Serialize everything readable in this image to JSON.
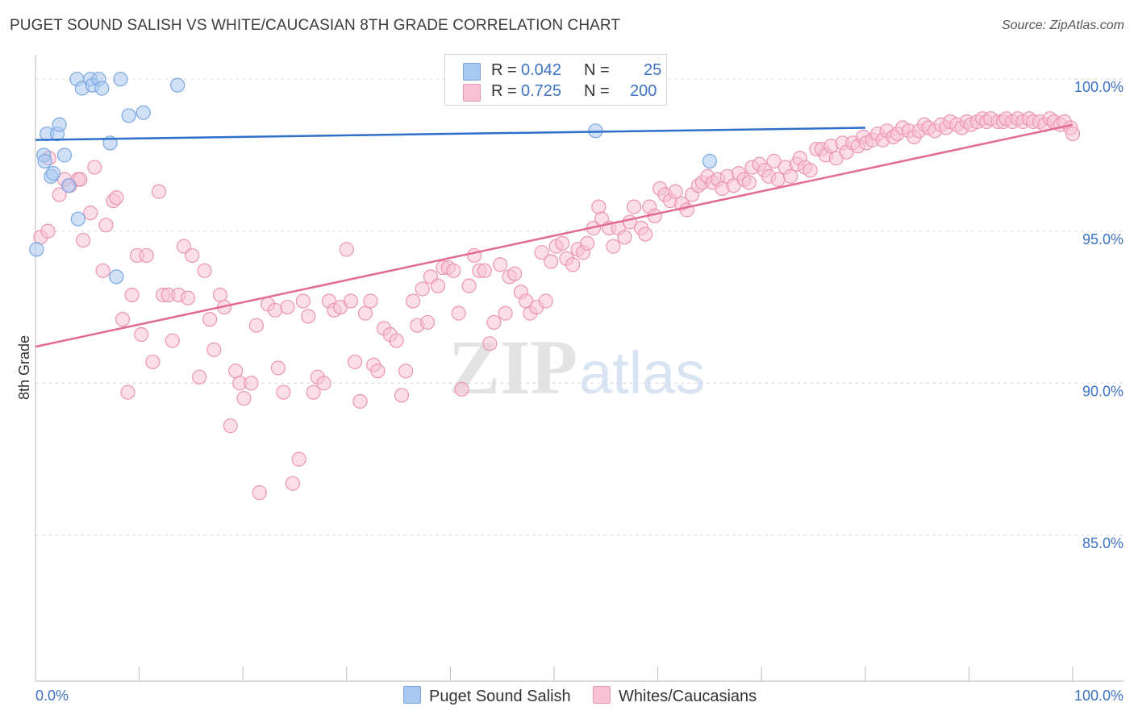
{
  "title": "PUGET SOUND SALISH VS WHITE/CAUCASIAN 8TH GRADE CORRELATION CHART",
  "source": "Source: ZipAtlas.com",
  "watermark": {
    "zip": "ZIP",
    "atlas": "atlas"
  },
  "legend": {
    "r_label": "R =",
    "n_label": "N =",
    "series": [
      {
        "name": "Puget Sound Salish",
        "r": "0.042",
        "n": "25"
      },
      {
        "name": "Whites/Caucasians",
        "r": "0.725",
        "n": "200"
      }
    ]
  },
  "colors": {
    "blue_fill": "#a9c8f0",
    "blue_stroke": "#7aa7e0",
    "blue_line": "#2f6fcc",
    "pink_fill": "#f7c3d4",
    "pink_stroke": "#ec95b2",
    "pink_line": "#e26a96",
    "axis_text": "#3c72c4",
    "grid": "#dddddd"
  },
  "chart_data": {
    "type": "scatter",
    "title": "PUGET SOUND SALISH VS WHITE/CAUCASIAN 8TH GRADE CORRELATION CHART",
    "xlabel": "",
    "ylabel": "8th Grade",
    "xlim": [
      0,
      100
    ],
    "ylim": [
      80.2,
      100.8
    ],
    "x_tick_labels": [
      "0.0%",
      "100.0%"
    ],
    "y_ticks": [
      {
        "value": 100,
        "label": "100.0%"
      },
      {
        "value": 95,
        "label": "95.0%"
      },
      {
        "value": 90,
        "label": "90.0%"
      },
      {
        "value": 85,
        "label": "85.0%"
      }
    ],
    "legend_position": "bottom",
    "series": [
      {
        "name": "Puget Sound Salish",
        "r": 0.042,
        "n": 25,
        "trend": {
          "x0": 0,
          "y0": 98.0,
          "x1": 80,
          "y1": 98.4
        },
        "points": [
          [
            0.1,
            94.4
          ],
          [
            0.8,
            97.5
          ],
          [
            0.9,
            97.3
          ],
          [
            1.1,
            98.2
          ],
          [
            1.5,
            96.8
          ],
          [
            1.7,
            96.9
          ],
          [
            2.1,
            98.2
          ],
          [
            2.3,
            98.5
          ],
          [
            2.8,
            97.5
          ],
          [
            3.2,
            96.5
          ],
          [
            4.1,
            95.4
          ],
          [
            4.0,
            100.0
          ],
          [
            4.5,
            99.7
          ],
          [
            5.3,
            100.0
          ],
          [
            5.5,
            99.8
          ],
          [
            6.1,
            100.0
          ],
          [
            6.4,
            99.7
          ],
          [
            7.2,
            97.9
          ],
          [
            7.8,
            93.5
          ],
          [
            8.2,
            100.0
          ],
          [
            9.0,
            98.8
          ],
          [
            10.4,
            98.9
          ],
          [
            13.7,
            99.8
          ],
          [
            54.0,
            98.3
          ],
          [
            65.0,
            97.3
          ]
        ]
      },
      {
        "name": "Whites/Caucasians",
        "r": 0.725,
        "n": 200,
        "trend": {
          "x0": 0,
          "y0": 91.2,
          "x1": 100,
          "y1": 98.5
        },
        "points": [
          [
            0.5,
            94.8
          ],
          [
            1.2,
            95.0
          ],
          [
            1.3,
            97.4
          ],
          [
            2.3,
            96.2
          ],
          [
            2.8,
            96.7
          ],
          [
            3.3,
            96.5
          ],
          [
            4.1,
            96.7
          ],
          [
            4.3,
            96.7
          ],
          [
            4.6,
            94.7
          ],
          [
            5.3,
            95.6
          ],
          [
            5.7,
            97.1
          ],
          [
            6.5,
            93.7
          ],
          [
            6.8,
            95.2
          ],
          [
            7.5,
            96.0
          ],
          [
            7.8,
            96.1
          ],
          [
            8.4,
            92.1
          ],
          [
            8.9,
            89.7
          ],
          [
            9.3,
            92.9
          ],
          [
            9.8,
            94.2
          ],
          [
            10.2,
            91.6
          ],
          [
            10.7,
            94.2
          ],
          [
            11.3,
            90.7
          ],
          [
            11.9,
            96.3
          ],
          [
            12.3,
            92.9
          ],
          [
            12.8,
            92.9
          ],
          [
            13.2,
            91.4
          ],
          [
            13.8,
            92.9
          ],
          [
            14.3,
            94.5
          ],
          [
            14.7,
            92.8
          ],
          [
            15.1,
            94.2
          ],
          [
            15.8,
            90.2
          ],
          [
            16.3,
            93.7
          ],
          [
            16.8,
            92.1
          ],
          [
            17.2,
            91.1
          ],
          [
            17.8,
            92.9
          ],
          [
            18.2,
            92.5
          ],
          [
            18.8,
            88.6
          ],
          [
            19.3,
            90.4
          ],
          [
            19.7,
            90.0
          ],
          [
            20.1,
            89.5
          ],
          [
            20.8,
            90.0
          ],
          [
            21.3,
            91.9
          ],
          [
            21.6,
            86.4
          ],
          [
            22.4,
            92.6
          ],
          [
            23.1,
            92.4
          ],
          [
            23.4,
            90.5
          ],
          [
            23.9,
            89.7
          ],
          [
            24.3,
            92.5
          ],
          [
            24.8,
            86.7
          ],
          [
            25.4,
            87.5
          ],
          [
            25.8,
            92.7
          ],
          [
            26.3,
            92.2
          ],
          [
            26.8,
            89.7
          ],
          [
            27.2,
            90.2
          ],
          [
            27.8,
            90.0
          ],
          [
            28.3,
            92.7
          ],
          [
            28.8,
            92.4
          ],
          [
            29.4,
            92.5
          ],
          [
            30.0,
            94.4
          ],
          [
            30.4,
            92.7
          ],
          [
            30.8,
            90.7
          ],
          [
            31.3,
            89.4
          ],
          [
            31.8,
            92.3
          ],
          [
            32.3,
            92.7
          ],
          [
            32.6,
            90.6
          ],
          [
            33.0,
            90.4
          ],
          [
            33.6,
            91.8
          ],
          [
            34.2,
            91.6
          ],
          [
            34.8,
            91.4
          ],
          [
            35.3,
            89.6
          ],
          [
            35.7,
            90.4
          ],
          [
            36.4,
            92.7
          ],
          [
            36.8,
            91.9
          ],
          [
            37.3,
            93.1
          ],
          [
            37.8,
            92.0
          ],
          [
            38.1,
            93.5
          ],
          [
            38.8,
            93.2
          ],
          [
            39.3,
            93.8
          ],
          [
            39.8,
            93.8
          ],
          [
            40.3,
            93.7
          ],
          [
            40.8,
            92.3
          ],
          [
            41.1,
            89.8
          ],
          [
            41.8,
            93.2
          ],
          [
            42.3,
            94.2
          ],
          [
            42.8,
            93.7
          ],
          [
            43.3,
            93.7
          ],
          [
            43.8,
            91.3
          ],
          [
            44.2,
            92.0
          ],
          [
            44.8,
            93.9
          ],
          [
            45.3,
            92.3
          ],
          [
            45.7,
            93.5
          ],
          [
            46.2,
            93.6
          ],
          [
            46.8,
            93.0
          ],
          [
            47.3,
            92.7
          ],
          [
            47.7,
            92.3
          ],
          [
            48.3,
            92.5
          ],
          [
            48.8,
            94.3
          ],
          [
            49.2,
            92.7
          ],
          [
            49.7,
            94.0
          ],
          [
            50.2,
            94.5
          ],
          [
            50.8,
            94.6
          ],
          [
            51.2,
            94.1
          ],
          [
            51.8,
            93.9
          ],
          [
            52.3,
            94.4
          ],
          [
            52.8,
            94.3
          ],
          [
            53.2,
            94.6
          ],
          [
            53.8,
            95.1
          ],
          [
            54.3,
            95.8
          ],
          [
            54.6,
            95.4
          ],
          [
            55.3,
            95.1
          ],
          [
            55.7,
            94.5
          ],
          [
            56.2,
            95.1
          ],
          [
            56.8,
            94.8
          ],
          [
            57.3,
            95.3
          ],
          [
            57.7,
            95.8
          ],
          [
            58.4,
            95.1
          ],
          [
            58.8,
            94.9
          ],
          [
            59.2,
            95.8
          ],
          [
            59.7,
            95.5
          ],
          [
            60.2,
            96.4
          ],
          [
            60.7,
            96.2
          ],
          [
            61.2,
            96.0
          ],
          [
            61.7,
            96.3
          ],
          [
            62.3,
            95.9
          ],
          [
            62.8,
            95.7
          ],
          [
            63.3,
            96.2
          ],
          [
            63.9,
            96.5
          ],
          [
            64.3,
            96.6
          ],
          [
            64.8,
            96.8
          ],
          [
            65.3,
            96.6
          ],
          [
            65.8,
            96.7
          ],
          [
            66.2,
            96.4
          ],
          [
            66.7,
            96.8
          ],
          [
            67.3,
            96.5
          ],
          [
            67.8,
            96.9
          ],
          [
            68.3,
            96.7
          ],
          [
            68.8,
            96.6
          ],
          [
            69.1,
            97.1
          ],
          [
            69.8,
            97.2
          ],
          [
            70.3,
            97.0
          ],
          [
            70.7,
            96.8
          ],
          [
            71.2,
            97.3
          ],
          [
            71.6,
            96.7
          ],
          [
            72.3,
            97.1
          ],
          [
            72.8,
            96.8
          ],
          [
            73.4,
            97.2
          ],
          [
            73.7,
            97.4
          ],
          [
            74.2,
            97.1
          ],
          [
            74.7,
            97.0
          ],
          [
            75.3,
            97.7
          ],
          [
            75.8,
            97.7
          ],
          [
            76.2,
            97.5
          ],
          [
            76.7,
            97.8
          ],
          [
            77.2,
            97.4
          ],
          [
            77.8,
            97.9
          ],
          [
            78.2,
            97.6
          ],
          [
            78.8,
            97.9
          ],
          [
            79.3,
            97.8
          ],
          [
            79.8,
            98.1
          ],
          [
            80.1,
            97.9
          ],
          [
            80.7,
            98.0
          ],
          [
            81.2,
            98.2
          ],
          [
            81.7,
            98.0
          ],
          [
            82.1,
            98.3
          ],
          [
            82.7,
            98.1
          ],
          [
            83.1,
            98.2
          ],
          [
            83.6,
            98.4
          ],
          [
            84.2,
            98.3
          ],
          [
            84.7,
            98.1
          ],
          [
            85.2,
            98.3
          ],
          [
            85.7,
            98.5
          ],
          [
            86.1,
            98.4
          ],
          [
            86.7,
            98.3
          ],
          [
            87.3,
            98.5
          ],
          [
            87.8,
            98.4
          ],
          [
            88.2,
            98.6
          ],
          [
            88.8,
            98.5
          ],
          [
            89.3,
            98.4
          ],
          [
            89.8,
            98.6
          ],
          [
            90.2,
            98.5
          ],
          [
            90.8,
            98.6
          ],
          [
            91.3,
            98.7
          ],
          [
            91.7,
            98.6
          ],
          [
            92.1,
            98.7
          ],
          [
            92.8,
            98.6
          ],
          [
            93.3,
            98.6
          ],
          [
            93.6,
            98.7
          ],
          [
            94.2,
            98.6
          ],
          [
            94.7,
            98.7
          ],
          [
            95.2,
            98.6
          ],
          [
            95.8,
            98.7
          ],
          [
            96.2,
            98.6
          ],
          [
            96.8,
            98.6
          ],
          [
            97.3,
            98.5
          ],
          [
            97.8,
            98.7
          ],
          [
            98.2,
            98.6
          ],
          [
            98.8,
            98.5
          ],
          [
            99.2,
            98.6
          ],
          [
            99.8,
            98.4
          ],
          [
            100.0,
            98.2
          ]
        ]
      }
    ]
  }
}
